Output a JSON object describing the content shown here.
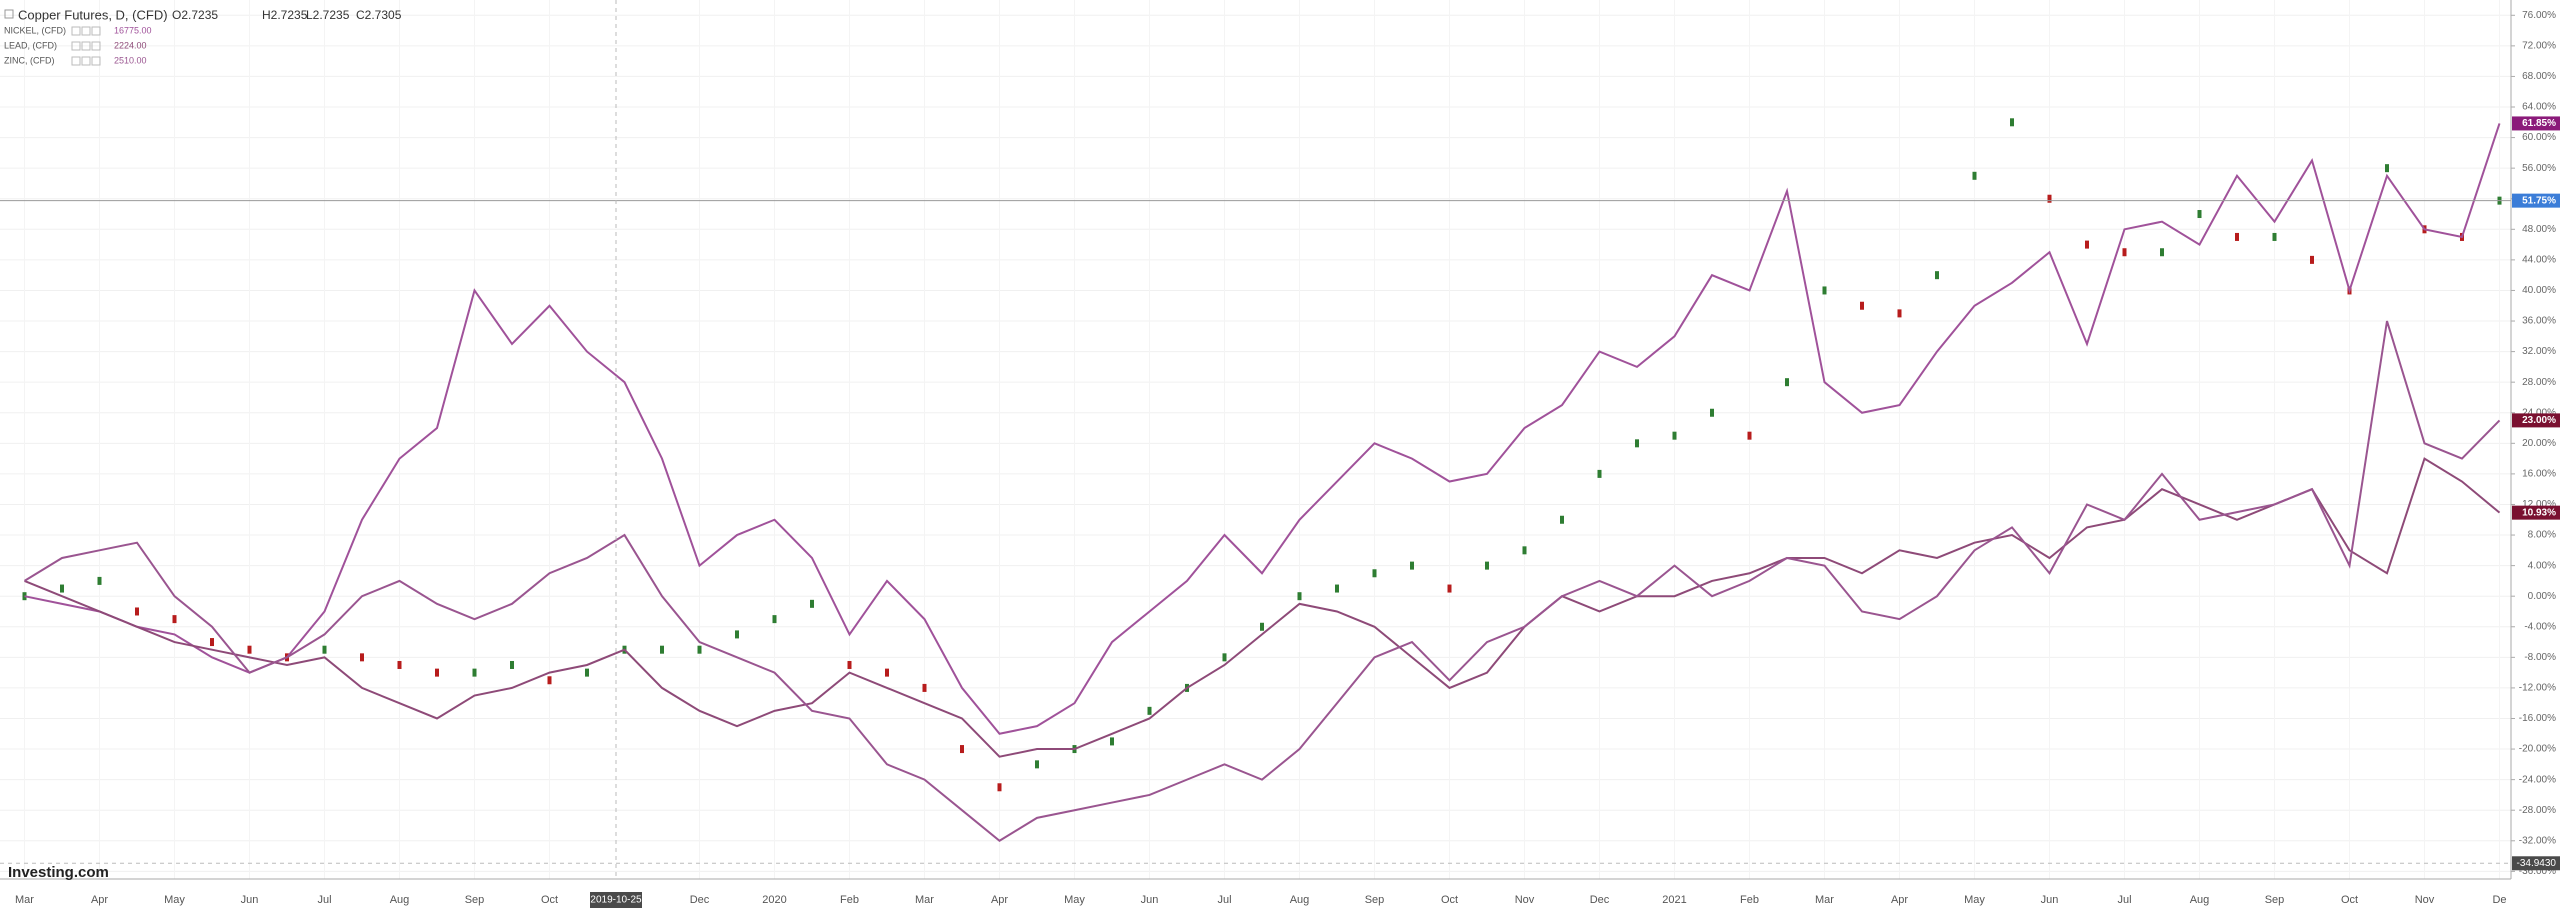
{
  "chart_data": {
    "type": "line",
    "title": "Copper Futures, D, (CFD)",
    "ohlc": [
      "O2.7235",
      "H2.7235",
      "L2.7235",
      "C2.7305"
    ],
    "brand": "Investing.com",
    "crosshair": {
      "x_label": "2019-10-25",
      "y_value": -34.943,
      "y_label": "-34.9430"
    },
    "categories": [
      "Mar",
      null,
      "Apr",
      null,
      "May",
      null,
      "Jun",
      null,
      "Jul",
      null,
      "Aug",
      null,
      "Sep",
      null,
      "Oct",
      null,
      null,
      null,
      "Dec",
      null,
      "2020",
      null,
      "Feb",
      null,
      "Mar",
      null,
      "Apr",
      null,
      "May",
      null,
      "Jun",
      null,
      "Jul",
      null,
      "Aug",
      null,
      "Sep",
      null,
      "Oct",
      null,
      "Nov",
      null,
      "Dec",
      null,
      "2021",
      null,
      "Feb",
      null,
      "Mar",
      null,
      "Apr",
      null,
      "May",
      null,
      "Jun",
      null,
      "Jul",
      null,
      "Aug",
      null,
      "Sep",
      null,
      "Oct",
      null,
      "Nov",
      null,
      "De"
    ],
    "series": [
      {
        "name": "Copper Futures",
        "style": "candle",
        "color": "#2e7d32",
        "down_color": "#b71c1c",
        "badge_color": "#3b7dd8",
        "values": [
          0,
          1,
          2,
          -2,
          -3,
          -6,
          -7,
          -8,
          -7,
          -8,
          -9,
          -10,
          -10,
          -9,
          -11,
          -10,
          -7,
          -7,
          -7,
          -5,
          -3,
          -1,
          -9,
          -10,
          -12,
          -20,
          -25,
          -22,
          -20,
          -19,
          -15,
          -12,
          -8,
          -4,
          0,
          1,
          3,
          4,
          1,
          4,
          6,
          10,
          16,
          20,
          21,
          24,
          21,
          28,
          40,
          38,
          37,
          42,
          55,
          62,
          52,
          46,
          45,
          45,
          50,
          47,
          47,
          44,
          40,
          56,
          48,
          47,
          51.75
        ],
        "value_labels": [
          null,
          null,
          null,
          null,
          null,
          null,
          null,
          null,
          null,
          null,
          null,
          null,
          null,
          null,
          null,
          null,
          null,
          null,
          null,
          null,
          null,
          null,
          null,
          null,
          null,
          null,
          null,
          null,
          null,
          null,
          null,
          null,
          null,
          null,
          null,
          null,
          null,
          null,
          null,
          null,
          null,
          null,
          null,
          null,
          null,
          null,
          null,
          null,
          null,
          null,
          null,
          null,
          null,
          null,
          null,
          null,
          null,
          null,
          null,
          null,
          null,
          null,
          null,
          null,
          null,
          null,
          "51.75%"
        ]
      },
      {
        "name": "NICKEL, (CFD)",
        "price": "16775.00",
        "color": "#a0529a",
        "badge_color": "#8b1a7a",
        "values": [
          0,
          -1,
          -2,
          -4,
          -5,
          -8,
          -10,
          -8,
          -2,
          10,
          18,
          22,
          40,
          33,
          38,
          32,
          28,
          18,
          4,
          8,
          10,
          5,
          -5,
          2,
          -3,
          -12,
          -18,
          -17,
          -14,
          -6,
          -2,
          2,
          8,
          3,
          10,
          15,
          20,
          18,
          15,
          16,
          22,
          25,
          32,
          30,
          34,
          42,
          40,
          53,
          28,
          24,
          25,
          32,
          38,
          41,
          45,
          33,
          48,
          49,
          46,
          55,
          49,
          57,
          40,
          55,
          48,
          47,
          61.85
        ],
        "value_labels": [
          null,
          null,
          null,
          null,
          null,
          null,
          null,
          null,
          null,
          null,
          null,
          null,
          null,
          null,
          null,
          null,
          null,
          null,
          null,
          null,
          null,
          null,
          null,
          null,
          null,
          null,
          null,
          null,
          null,
          null,
          null,
          null,
          null,
          null,
          null,
          null,
          null,
          null,
          null,
          null,
          null,
          null,
          null,
          null,
          null,
          null,
          null,
          null,
          null,
          null,
          null,
          null,
          null,
          null,
          null,
          null,
          null,
          null,
          null,
          null,
          null,
          null,
          null,
          null,
          null,
          null,
          "61.85%"
        ]
      },
      {
        "name": "LEAD, (CFD)",
        "price": "2224.00",
        "color": "#8e4a78",
        "badge_color": "#7a1030",
        "values": [
          2,
          0,
          -2,
          -4,
          -6,
          -7,
          -8,
          -9,
          -8,
          -12,
          -14,
          -16,
          -13,
          -12,
          -10,
          -9,
          -7,
          -12,
          -15,
          -17,
          -15,
          -14,
          -10,
          -12,
          -14,
          -16,
          -21,
          -20,
          -20,
          -18,
          -16,
          -12,
          -9,
          -5,
          -1,
          -2,
          -4,
          -8,
          -12,
          -10,
          -4,
          0,
          -2,
          0,
          0,
          2,
          3,
          5,
          5,
          3,
          6,
          5,
          7,
          8,
          5,
          9,
          10,
          14,
          12,
          10,
          12,
          14,
          6,
          3,
          18,
          15,
          10.93
        ],
        "value_labels": [
          null,
          null,
          null,
          null,
          null,
          null,
          null,
          null,
          null,
          null,
          null,
          null,
          null,
          null,
          null,
          null,
          null,
          null,
          null,
          null,
          null,
          null,
          null,
          null,
          null,
          null,
          null,
          null,
          null,
          null,
          null,
          null,
          null,
          null,
          null,
          null,
          null,
          null,
          null,
          null,
          null,
          null,
          null,
          null,
          null,
          null,
          null,
          null,
          null,
          null,
          null,
          null,
          null,
          null,
          null,
          null,
          null,
          null,
          null,
          null,
          null,
          null,
          null,
          null,
          null,
          null,
          "10.93%"
        ]
      },
      {
        "name": "ZINC, (CFD)",
        "price": "2510.00",
        "color": "#9a5590",
        "badge_color": "#7a1030",
        "values": [
          2,
          5,
          6,
          7,
          0,
          -4,
          -10,
          -8,
          -5,
          0,
          2,
          -1,
          -3,
          -1,
          3,
          5,
          8,
          0,
          -6,
          -8,
          -10,
          -15,
          -16,
          -22,
          -24,
          -28,
          -32,
          -29,
          -28,
          -27,
          -26,
          -24,
          -22,
          -24,
          -20,
          -14,
          -8,
          -6,
          -11,
          -6,
          -4,
          0,
          2,
          0,
          4,
          0,
          2,
          5,
          4,
          -2,
          -3,
          0,
          6,
          9,
          3,
          12,
          10,
          16,
          10,
          11,
          12,
          14,
          4,
          36,
          20,
          18,
          23
        ],
        "value_labels": [
          null,
          null,
          null,
          null,
          null,
          null,
          null,
          null,
          null,
          null,
          null,
          null,
          null,
          null,
          null,
          null,
          null,
          null,
          null,
          null,
          null,
          null,
          null,
          null,
          null,
          null,
          null,
          null,
          null,
          null,
          null,
          null,
          null,
          null,
          null,
          null,
          null,
          null,
          null,
          null,
          null,
          null,
          null,
          null,
          null,
          null,
          null,
          null,
          null,
          null,
          null,
          null,
          null,
          null,
          null,
          null,
          null,
          null,
          null,
          null,
          null,
          null,
          null,
          null,
          null,
          null,
          "23.00%"
        ]
      }
    ],
    "ylim": [
      -37,
      78
    ],
    "yticks": [
      {
        "value": 76,
        "label": "76.00%"
      },
      {
        "value": 72,
        "label": "72.00%"
      },
      {
        "value": 68,
        "label": "68.00%"
      },
      {
        "value": 64,
        "label": "64.00%"
      },
      {
        "value": 60,
        "label": "60.00%"
      },
      {
        "value": 56,
        "label": "56.00%"
      },
      {
        "value": 52,
        "label": "52.00%"
      },
      {
        "value": 48,
        "label": "48.00%"
      },
      {
        "value": 44,
        "label": "44.00%"
      },
      {
        "value": 40,
        "label": "40.00%"
      },
      {
        "value": 36,
        "label": "36.00%"
      },
      {
        "value": 32,
        "label": "32.00%"
      },
      {
        "value": 28,
        "label": "28.00%"
      },
      {
        "value": 24,
        "label": "24.00%"
      },
      {
        "value": 20,
        "label": "20.00%"
      },
      {
        "value": 16,
        "label": "16.00%"
      },
      {
        "value": 12,
        "label": "12.00%"
      },
      {
        "value": 8,
        "label": "8.00%"
      },
      {
        "value": 4,
        "label": "4.00%"
      },
      {
        "value": 0,
        "label": "0.00%"
      },
      {
        "value": -4,
        "label": "-4.00%"
      },
      {
        "value": -8,
        "label": "-8.00%"
      },
      {
        "value": -12,
        "label": "-12.00%"
      },
      {
        "value": -16,
        "label": "-16.00%"
      },
      {
        "value": -20,
        "label": "-20.00%"
      },
      {
        "value": -24,
        "label": "-24.00%"
      },
      {
        "value": -28,
        "label": "-28.00%"
      },
      {
        "value": -32,
        "label": "-32.00%"
      },
      {
        "value": -36,
        "label": "-36.00%"
      }
    ],
    "grid": true
  }
}
